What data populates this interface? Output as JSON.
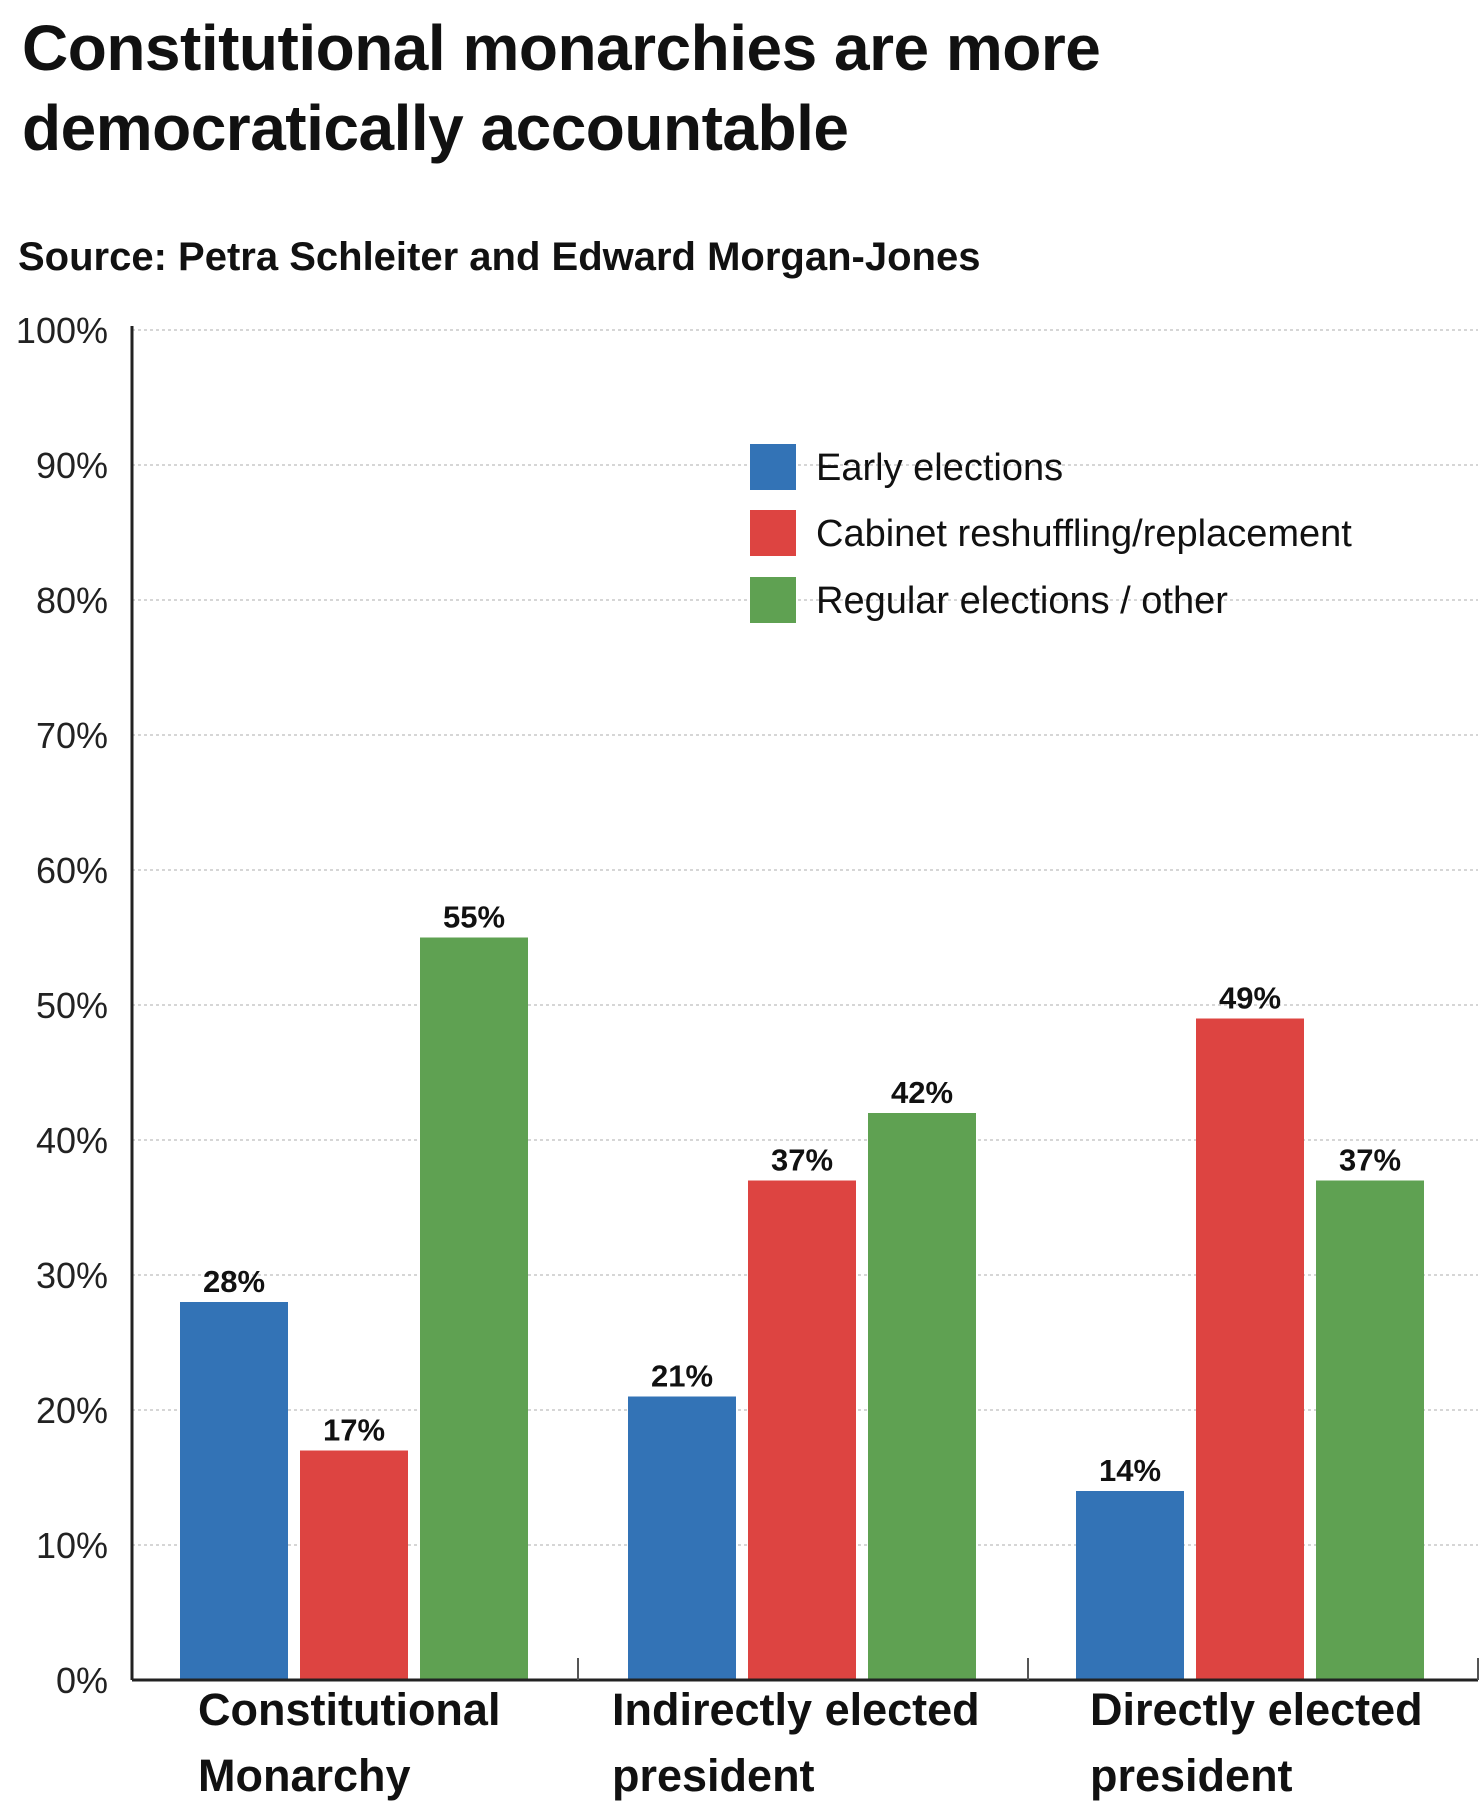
{
  "title": "Constitutional monarchies are more democratically accountable",
  "subtitle": "Source: Petra Schleiter and Edward Morgan-Jones",
  "colors": {
    "early": "#3373b6",
    "cabinet": "#dd4441",
    "regular": "#5fa152"
  },
  "chart_data": {
    "type": "bar",
    "categories": [
      [
        "Constitutional",
        "Monarchy"
      ],
      [
        "Indirectly elected",
        "president"
      ],
      [
        "Directly elected",
        "president"
      ]
    ],
    "series": [
      {
        "name": "Early elections",
        "values": [
          28,
          21,
          14
        ],
        "color": "#3373b6"
      },
      {
        "name": "Cabinet reshuffling/replacement",
        "values": [
          17,
          37,
          49
        ],
        "color": "#dd4441"
      },
      {
        "name": "Regular elections / other",
        "values": [
          55,
          42,
          37
        ],
        "color": "#5fa152"
      }
    ],
    "value_labels": [
      [
        "28%",
        "21%",
        "14%"
      ],
      [
        "17%",
        "37%",
        "49%"
      ],
      [
        "55%",
        "42%",
        "37%"
      ]
    ],
    "y_ticks": [
      "0%",
      "10%",
      "20%",
      "30%",
      "40%",
      "50%",
      "60%",
      "70%",
      "80%",
      "90%",
      "100%"
    ],
    "ylim": [
      0,
      100
    ],
    "grid": true,
    "legend_position": "top-right"
  }
}
